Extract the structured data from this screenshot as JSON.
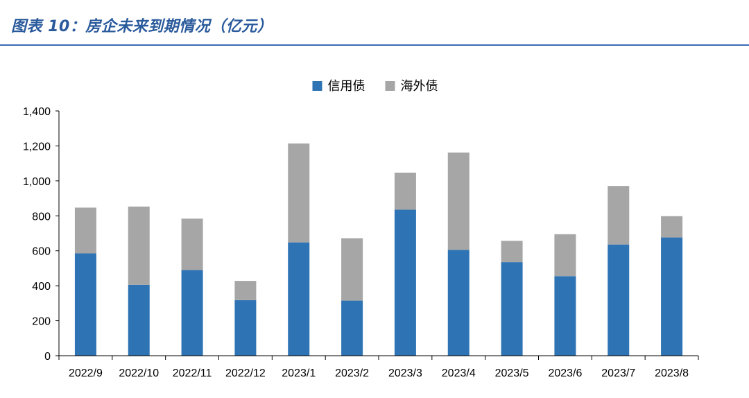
{
  "header": {
    "title": "图表 10：房企未来到期情况（亿元）"
  },
  "colors": {
    "credit_bond": "#2e74b5",
    "overseas_bond": "#a6a6a6",
    "title": "#2a5a9c",
    "rule": "#3b6ab3"
  },
  "chart_data": {
    "type": "bar",
    "stacked": true,
    "title": "",
    "xlabel": "",
    "ylabel": "",
    "ylim": [
      0,
      1400
    ],
    "yticks": [
      0,
      200,
      400,
      600,
      800,
      1000,
      1200,
      1400
    ],
    "ytick_labels": [
      "0",
      "200",
      "400",
      "600",
      "800",
      "1,000",
      "1,200",
      "1,400"
    ],
    "grid": false,
    "legend_position": "top-center",
    "categories": [
      "2022/9",
      "2022/10",
      "2022/11",
      "2022/12",
      "2023/1",
      "2023/2",
      "2023/3",
      "2023/4",
      "2023/5",
      "2023/6",
      "2023/7",
      "2023/8"
    ],
    "series": [
      {
        "name": "信用债",
        "color": "#2e74b5",
        "values": [
          585,
          405,
          490,
          318,
          648,
          315,
          835,
          605,
          535,
          455,
          636,
          676
        ]
      },
      {
        "name": "海外债",
        "color": "#a6a6a6",
        "values": [
          262,
          448,
          294,
          110,
          566,
          357,
          212,
          557,
          122,
          240,
          335,
          122
        ]
      }
    ]
  }
}
